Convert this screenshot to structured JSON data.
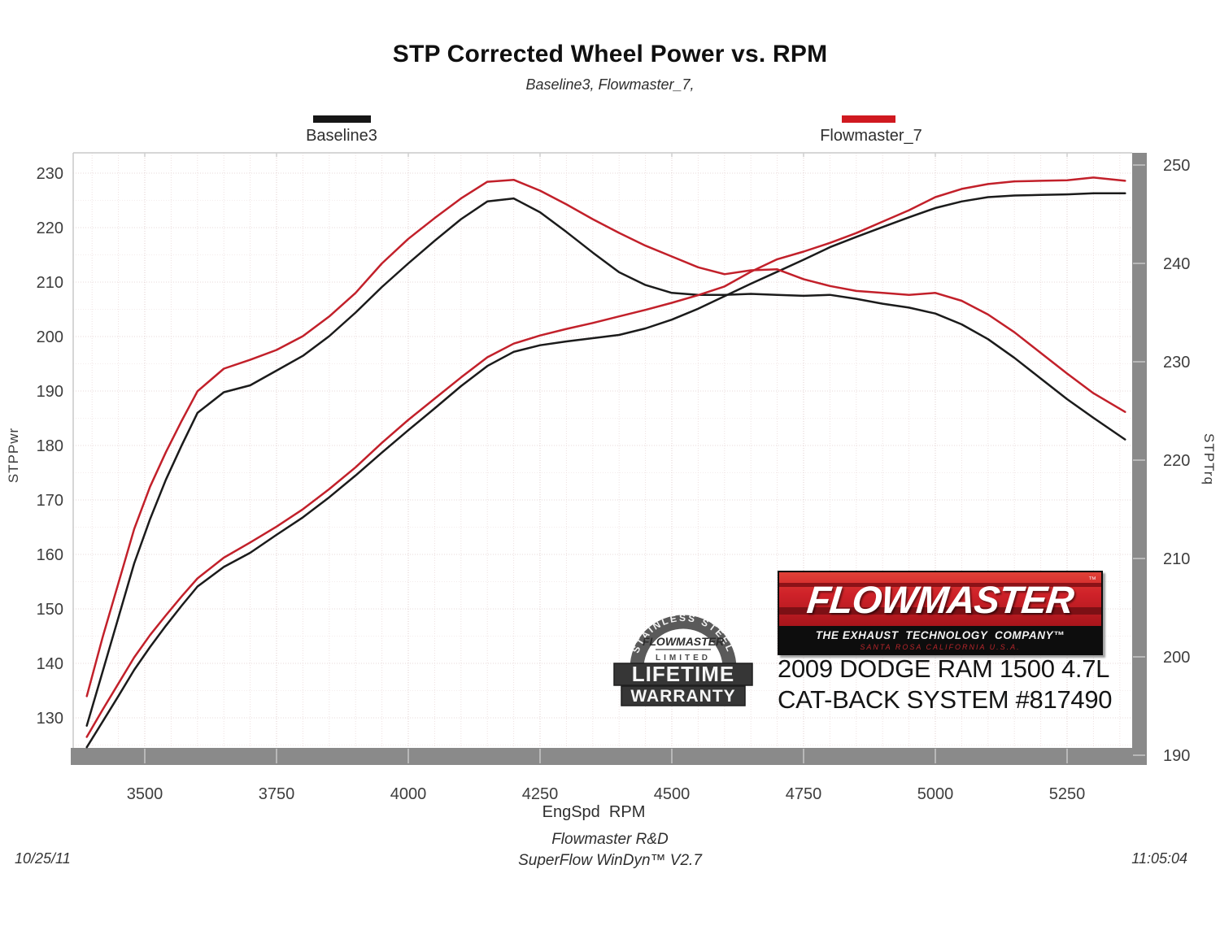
{
  "title": "STP Corrected Wheel Power vs. RPM",
  "subtitle": "Baseline3, Flowmaster_7,",
  "legend": {
    "baseline": {
      "label": "Baseline3",
      "color": "#161616"
    },
    "flowmaster": {
      "label": "Flowmaster_7",
      "color": "#d01920"
    }
  },
  "footer": {
    "rd_line": "Flowmaster R&D",
    "software_line": "SuperFlow WinDyn™ V2.7",
    "date": "10/25/11",
    "time": "11:05:04"
  },
  "branding": {
    "logo_name": "FLOWMASTER",
    "logo_trademark": "™",
    "logo_tagline": "THE EXHAUST  TECHNOLOGY  COMPANY™",
    "logo_address": "SANTA ROSA   CALIFORNIA   U.S.A.",
    "vehicle_line1": "2009 DODGE RAM 1500 4.7L",
    "vehicle_line2": "CAT-BACK SYSTEM #817490",
    "badge": {
      "arc_text": "STAINLESS STEEL",
      "brand": "FLOWMASTER",
      "limited": "LIMITED",
      "line1": "LIFETIME",
      "line2": "WARRANTY"
    }
  },
  "chart_data": {
    "type": "line",
    "title": "STP Corrected Wheel Power vs. RPM",
    "subtitle": "Baseline3, Flowmaster_7,",
    "x_axis": {
      "label": "EngSpd  RPM",
      "ticks": [
        3500,
        3750,
        4000,
        4250,
        4500,
        4750,
        5000,
        5250
      ],
      "minor_step": 50,
      "range": [
        3364,
        5373
      ]
    },
    "left_axis": {
      "label": "STPPwr",
      "ticks": [
        230,
        220,
        210,
        200,
        190,
        180,
        170,
        160,
        150,
        140,
        130
      ],
      "range": [
        124.5,
        233.7
      ]
    },
    "right_axis": {
      "label": "STPTrq",
      "ticks": [
        250,
        240,
        230,
        220,
        210,
        200,
        190
      ],
      "range": [
        189.3,
        251.3
      ]
    },
    "legend_position": "top",
    "grid": true,
    "rpm": [
      3390,
      3420,
      3450,
      3480,
      3510,
      3540,
      3570,
      3600,
      3650,
      3700,
      3750,
      3800,
      3850,
      3900,
      3950,
      4000,
      4050,
      4100,
      4150,
      4200,
      4250,
      4300,
      4350,
      4400,
      4450,
      4500,
      4550,
      4600,
      4650,
      4700,
      4750,
      4800,
      4850,
      4900,
      4950,
      5000,
      5050,
      5100,
      5150,
      5200,
      5250,
      5300,
      5360
    ],
    "series": [
      {
        "name": "Baseline3 STPTrq",
        "axis": "right",
        "color": "#1b1b1b",
        "values": [
          193.0,
          198.5,
          204.0,
          209.5,
          214.0,
          218.0,
          221.5,
          224.8,
          226.9,
          227.6,
          229.1,
          230.6,
          232.6,
          235.0,
          237.6,
          240.0,
          242.3,
          244.5,
          246.3,
          246.6,
          245.2,
          243.2,
          241.1,
          239.1,
          237.8,
          237.0,
          236.8,
          236.8,
          236.9,
          236.8,
          236.7,
          236.8,
          236.4,
          235.9,
          235.5,
          234.9,
          233.8,
          232.3,
          230.4,
          228.3,
          226.2,
          224.3,
          222.1
        ]
      },
      {
        "name": "Baseline3 STPPwr",
        "axis": "left",
        "color": "#1b1b1b",
        "values": [
          124.6,
          129.3,
          134.0,
          138.8,
          143.0,
          146.9,
          150.6,
          154.1,
          157.7,
          160.3,
          163.6,
          166.8,
          170.5,
          174.5,
          178.7,
          182.8,
          186.8,
          190.9,
          194.6,
          197.2,
          198.4,
          199.1,
          199.7,
          200.3,
          201.5,
          203.1,
          205.1,
          207.4,
          209.7,
          211.9,
          214.1,
          216.4,
          218.3,
          220.1,
          221.9,
          223.6,
          224.8,
          225.6,
          225.9,
          226.0,
          226.1,
          226.3,
          226.3
        ]
      },
      {
        "name": "Flowmaster_7 STPTrq",
        "axis": "right",
        "color": "#c2202a",
        "values": [
          196.0,
          202.0,
          207.5,
          213.0,
          217.3,
          220.8,
          224.0,
          227.0,
          229.3,
          230.2,
          231.2,
          232.6,
          234.6,
          237.0,
          240.0,
          242.5,
          244.6,
          246.6,
          248.3,
          248.5,
          247.4,
          246.0,
          244.5,
          243.1,
          241.8,
          240.7,
          239.6,
          238.9,
          239.3,
          239.4,
          238.4,
          237.7,
          237.2,
          237.0,
          236.8,
          237.0,
          236.2,
          234.8,
          233.0,
          230.9,
          228.8,
          226.8,
          224.9
        ]
      },
      {
        "name": "Flowmaster_7 STPPwr",
        "axis": "left",
        "color": "#c2202a",
        "values": [
          126.5,
          131.5,
          136.3,
          141.1,
          145.2,
          148.8,
          152.3,
          155.6,
          159.4,
          162.2,
          165.1,
          168.3,
          172.0,
          176.0,
          180.5,
          184.7,
          188.6,
          192.5,
          196.2,
          198.7,
          200.2,
          201.4,
          202.5,
          203.7,
          204.9,
          206.2,
          207.6,
          209.2,
          211.9,
          214.2,
          215.6,
          217.2,
          219.0,
          221.1,
          223.2,
          225.6,
          227.1,
          228.0,
          228.5,
          228.6,
          228.7,
          229.2,
          228.6
        ]
      }
    ]
  }
}
